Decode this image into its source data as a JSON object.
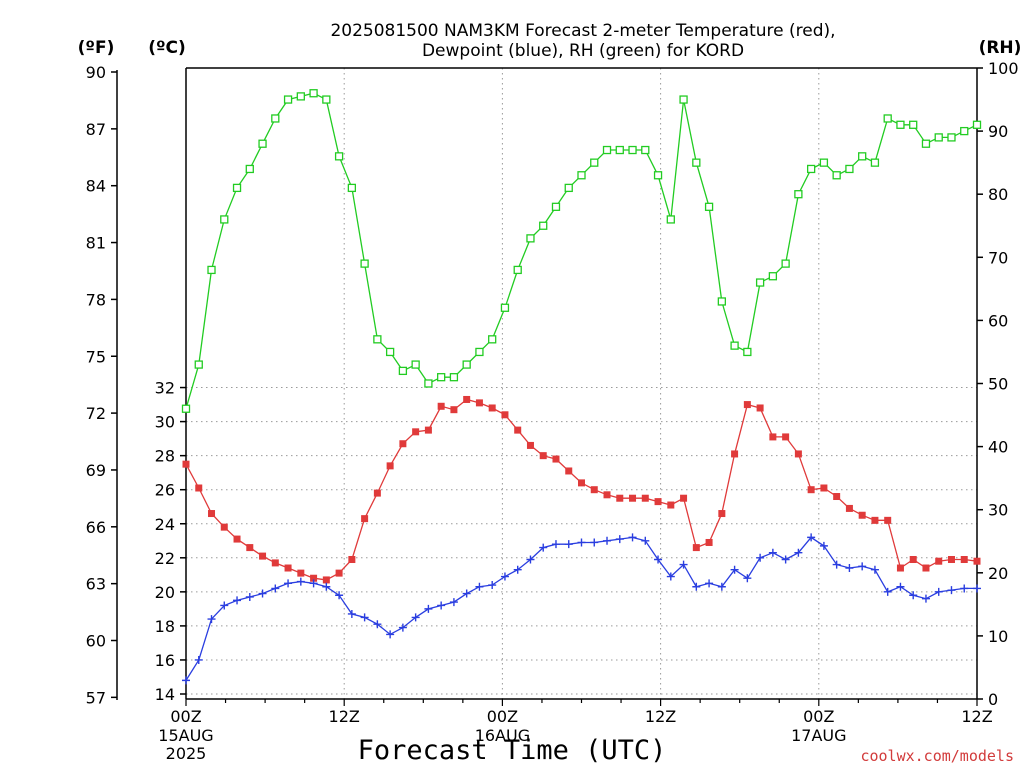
{
  "chart_data": {
    "type": "line",
    "title_line1": "2025081500 NAM3KM Forecast 2-meter Temperature (red),",
    "title_line2": "Dewpoint (blue), RH (green) for KORD",
    "xlabel": "Forecast Time (UTC)",
    "credit": "coolwx.com/models",
    "units": {
      "f": "(ºF)",
      "c": "(ºC)",
      "rh": "(RH)"
    },
    "y_left_f": {
      "ticks": [
        "90",
        "87",
        "84",
        "81",
        "78",
        "75",
        "72",
        "69",
        "66",
        "63",
        "60",
        "57"
      ]
    },
    "y_left_c": {
      "ticks": [
        "32",
        "30",
        "28",
        "26",
        "24",
        "22",
        "20",
        "18",
        "16",
        "14"
      ],
      "ylim": [
        14,
        32.4
      ]
    },
    "y_right_rh": {
      "ticks": [
        "100",
        "90",
        "80",
        "70",
        "60",
        "50",
        "40",
        "30",
        "20",
        "10",
        "0"
      ],
      "ylim": [
        0,
        100
      ]
    },
    "x": {
      "range_hours": [
        0,
        60
      ],
      "ticks": [
        {
          "hour": 0,
          "label": "00Z",
          "date": "15AUG",
          "year": "2025"
        },
        {
          "hour": 12,
          "label": "12Z",
          "date": "",
          "year": ""
        },
        {
          "hour": 24,
          "label": "00Z",
          "date": "16AUG",
          "year": ""
        },
        {
          "hour": 36,
          "label": "12Z",
          "date": "",
          "year": ""
        },
        {
          "hour": 48,
          "label": "00Z",
          "date": "17AUG",
          "year": ""
        },
        {
          "hour": 60,
          "label": "12Z",
          "date": "",
          "year": ""
        }
      ]
    },
    "series": [
      {
        "name": "Temperature",
        "unit": "°C",
        "axis": "left",
        "color": "#e03a3a",
        "marker": "filled-square",
        "values": [
          27.5,
          26.1,
          24.6,
          23.8,
          23.1,
          22.6,
          22.1,
          21.7,
          21.4,
          21.1,
          20.8,
          20.7,
          21.1,
          21.9,
          24.3,
          25.8,
          27.4,
          28.7,
          29.4,
          29.5,
          30.9,
          30.7,
          31.3,
          31.1,
          30.8,
          30.4,
          29.5,
          28.6,
          28.0,
          27.8,
          27.1,
          26.4,
          26.0,
          25.7,
          25.5,
          25.5,
          25.5,
          25.3,
          25.1,
          25.5,
          22.6,
          22.9,
          24.6,
          28.1,
          31.0,
          30.8,
          29.1,
          29.1,
          28.1,
          26.0,
          26.1,
          25.6,
          24.9,
          24.5,
          24.2,
          24.2,
          21.4,
          21.9,
          21.4,
          21.8,
          21.9,
          21.9,
          21.8
        ]
      },
      {
        "name": "Dewpoint",
        "unit": "°C",
        "axis": "left",
        "color": "#2a3ee0",
        "marker": "plus",
        "values": [
          14.8,
          16.0,
          18.4,
          19.2,
          19.5,
          19.7,
          19.9,
          20.2,
          20.5,
          20.6,
          20.5,
          20.3,
          19.8,
          18.7,
          18.5,
          18.1,
          17.5,
          17.9,
          18.5,
          19.0,
          19.2,
          19.4,
          19.9,
          20.3,
          20.4,
          20.9,
          21.3,
          21.9,
          22.6,
          22.8,
          22.8,
          22.9,
          22.9,
          23.0,
          23.1,
          23.2,
          23.0,
          21.9,
          20.9,
          21.6,
          20.3,
          20.5,
          20.3,
          21.3,
          20.8,
          22.0,
          22.3,
          21.9,
          22.3,
          23.2,
          22.7,
          21.6,
          21.4,
          21.5,
          21.3,
          20.0,
          20.3,
          19.8,
          19.6,
          20.0,
          20.1,
          20.2,
          20.2
        ]
      },
      {
        "name": "RH",
        "unit": "%",
        "axis": "right",
        "color": "#22cc22",
        "marker": "open-square",
        "values": [
          46,
          53,
          68,
          76,
          81,
          84,
          88,
          92,
          95,
          95.5,
          96,
          95,
          86,
          81,
          69,
          57,
          55,
          52,
          53,
          50,
          51,
          51,
          53,
          55,
          57,
          62,
          68,
          73,
          75,
          78,
          81,
          83,
          85,
          87,
          87,
          87,
          87,
          83,
          76,
          95,
          85,
          78,
          63,
          56,
          55,
          66,
          67,
          69,
          80,
          84,
          85,
          83,
          84,
          86,
          85,
          92,
          91,
          91,
          88,
          89,
          89,
          90,
          91
        ]
      }
    ]
  }
}
